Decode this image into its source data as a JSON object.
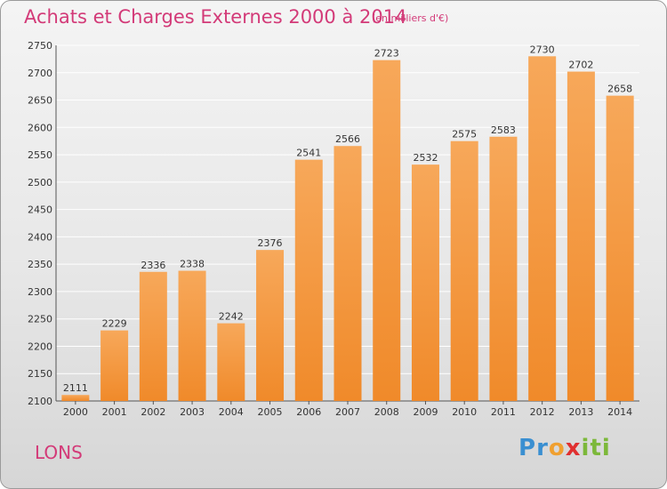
{
  "header": {
    "title": "Achats et Charges Externes 2000 à 2014",
    "subtitle": "(en milliers d'€)"
  },
  "footer": {
    "commune": "LONS",
    "logo_letters": [
      {
        "ch": "P",
        "color": "#3a8fd1"
      },
      {
        "ch": "r",
        "color": "#3a8fd1"
      },
      {
        "ch": "o",
        "color": "#f0a030"
      },
      {
        "ch": "x",
        "color": "#e03030"
      },
      {
        "ch": "i",
        "color": "#7cb83a"
      },
      {
        "ch": "t",
        "color": "#7cb83a"
      },
      {
        "ch": "i",
        "color": "#7cb83a"
      }
    ]
  },
  "colors": {
    "bar": "#f08a2a",
    "bar_light": "#f7a85a",
    "accent": "#d33a78"
  },
  "chart_data": {
    "type": "bar",
    "categories": [
      "2000",
      "2001",
      "2002",
      "2003",
      "2004",
      "2005",
      "2006",
      "2007",
      "2008",
      "2009",
      "2010",
      "2011",
      "2012",
      "2013",
      "2014"
    ],
    "values": [
      2111,
      2229,
      2336,
      2338,
      2242,
      2376,
      2541,
      2566,
      2723,
      2532,
      2575,
      2583,
      2730,
      2702,
      2658
    ],
    "title": "Achats et Charges Externes 2000 à 2014",
    "xlabel": "",
    "ylabel": "",
    "ylim": [
      2100,
      2750
    ],
    "yticks": [
      2100,
      2150,
      2200,
      2250,
      2300,
      2350,
      2400,
      2450,
      2500,
      2550,
      2600,
      2650,
      2700,
      2750
    ],
    "grid": true
  }
}
